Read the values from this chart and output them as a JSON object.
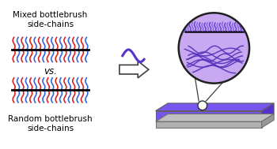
{
  "bg_color": "#ffffff",
  "mixed_label": "Mixed bottlebrush\nside-chains",
  "random_label": "Random bottlebrush\nside-chains",
  "vs_label": "vs.",
  "red_color": "#dd2222",
  "blue_color": "#3366dd",
  "purple_color": "#5533bb",
  "purple_light": "#c8a8f0",
  "purple_film": "#7755ee",
  "gray_top": "#c0c0c0",
  "gray_side": "#909090",
  "gray_front": "#a8a8a8",
  "arrow_color": "#404040",
  "sine_color": "#5533cc",
  "circle_edge": "#202020",
  "brush_color1": "#6644cc",
  "brush_color2": "#8866ee"
}
